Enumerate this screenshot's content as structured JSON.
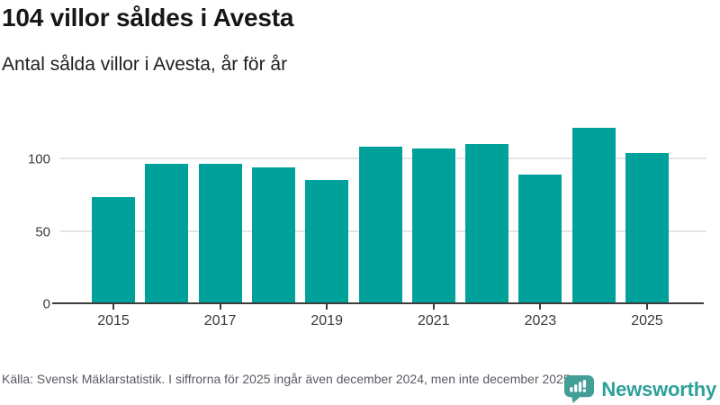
{
  "header": {
    "title": "104 villor såldes i Avesta",
    "subtitle": "Antal sålda villor i Avesta, år för år"
  },
  "chart_data": {
    "type": "bar",
    "title": "104 villor såldes i Avesta",
    "subtitle": "Antal sålda villor i Avesta, år för år",
    "categories": [
      "2015",
      "2016",
      "2017",
      "2018",
      "2019",
      "2020",
      "2021",
      "2022",
      "2023",
      "2024",
      "2025"
    ],
    "values": [
      73,
      96,
      96,
      94,
      85,
      108,
      107,
      110,
      89,
      121,
      104
    ],
    "xlabel": "",
    "ylabel": "",
    "ylim": [
      0,
      125
    ],
    "y_ticks": [
      0,
      50,
      100
    ],
    "x_tick_labels": [
      "2015",
      "2017",
      "2019",
      "2021",
      "2023",
      "2025"
    ],
    "x_tick_bar_indices": [
      0,
      2,
      4,
      6,
      8,
      10
    ],
    "grid": true,
    "legend": "none",
    "bar_color": "#00a19a"
  },
  "footer": {
    "source_text": "Källa: Svensk Mäklarstatistik. I siffrorna för 2025 ingår även december 2024, men inte december 2025.",
    "logo_text": "Newsworthy"
  },
  "colors": {
    "bar": "#00a19a",
    "gridline": "#e5e5e5",
    "axis": "#3c3c3c",
    "tick_label": "#3a3a3a",
    "title": "#161616",
    "footer_text": "#585a62",
    "logo_icon": "#429e97",
    "logo_text": "#2da09a"
  }
}
